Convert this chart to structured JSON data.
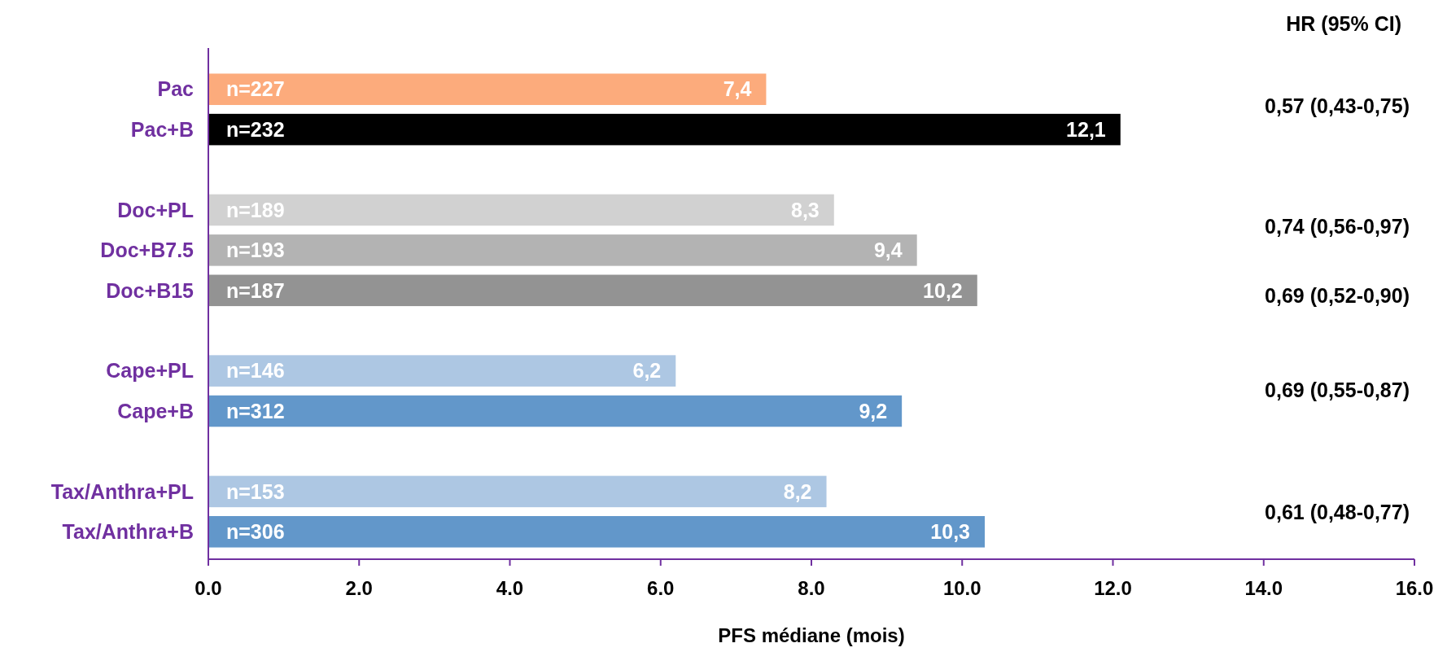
{
  "chart_data": {
    "type": "bar",
    "orientation": "horizontal",
    "xlabel": "PFS médiane (mois)",
    "categories": [
      "Pac",
      "Pac+B",
      null,
      "Doc+PL",
      "Doc+B7.5",
      "Doc+B15",
      null,
      "Cape+PL",
      "Cape+B",
      null,
      "Tax/Anthra+PL",
      "Tax/Anthra+B"
    ],
    "values": [
      7.4,
      12.1,
      null,
      8.3,
      9.4,
      10.2,
      null,
      6.2,
      9.2,
      null,
      8.2,
      10.3
    ],
    "colors": [
      "#fcab7c",
      "#000000",
      null,
      "#d1d1d1",
      "#b3b3b3",
      "#939393",
      null,
      "#adc7e3",
      "#6297ca",
      null,
      "#adc7e3",
      "#6297ca"
    ],
    "value_labels": [
      "7,4",
      "12,1",
      null,
      "8,3",
      "9,4",
      "10,2",
      null,
      "6,2",
      "9,2",
      null,
      "8,2",
      "10,3"
    ],
    "xlim": [
      0,
      16
    ],
    "xticks": [
      {
        "value": 0,
        "label": "0.0"
      },
      {
        "value": 2,
        "label": "2.0"
      },
      {
        "value": 4,
        "label": "4.0"
      },
      {
        "value": 6,
        "label": "6.0"
      },
      {
        "value": 8,
        "label": "8.0"
      },
      {
        "value": 10,
        "label": "10.0"
      },
      {
        "value": 12,
        "label": "12.0"
      },
      {
        "value": 14,
        "label": "14.0"
      },
      {
        "value": 16,
        "label": "16.0"
      }
    ],
    "grid": false,
    "annotations": [
      "HR (95% CI)",
      {
        "text": "n=227",
        "y": "Pac"
      },
      {
        "text": "n=232",
        "y": "Pac+B"
      },
      {
        "text": "n=189",
        "y": "Doc+PL"
      },
      {
        "text": "n=193",
        "y": "Doc+B7.5"
      },
      {
        "text": "n=187",
        "y": "Doc+B15"
      },
      {
        "text": "n=146",
        "y": "Cape+PL"
      },
      {
        "text": "n=312",
        "y": "Cape+B"
      },
      {
        "text": "n=153",
        "y": "Tax/Anthra+PL"
      },
      {
        "text": "n=306",
        "y": "Tax/Anthra+B"
      },
      "0,57 (0,43-0,75)",
      "0,74 (0,56-0,97)",
      "0,69 (0,52-0,90)",
      "0,69 (0,55-0,87)",
      "0,61 (0,48-0,77)"
    ]
  }
}
